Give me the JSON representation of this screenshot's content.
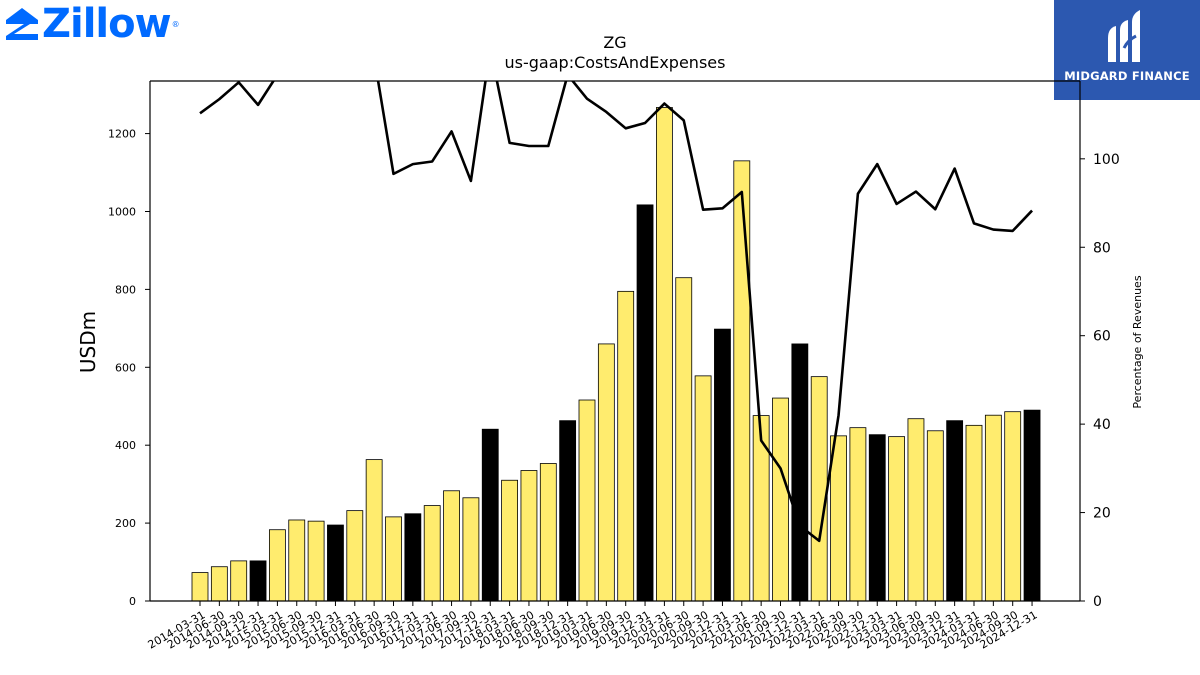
{
  "logos": {
    "left_wordmark": "Zillow",
    "left_reg_mark": "®",
    "right_brand": "MIDGARD FINANCE"
  },
  "colors": {
    "bar_fill": "#ffec6e",
    "bar_highlight": "#000000",
    "line": "#000000",
    "zillow_blue": "#006aff",
    "midgard_bg": "#2c58b0"
  },
  "chart_data": {
    "type": "bar",
    "title": "ZG",
    "subtitle": "us-gaap:CostsAndExpenses",
    "ylabel": "USDm",
    "y2label": "Percentage of Revenues",
    "ylim": [
      0,
      1335
    ],
    "y2lim": [
      0,
      117.6
    ],
    "yticks": [
      0,
      200,
      400,
      600,
      800,
      1000,
      1200
    ],
    "y2ticks": [
      0,
      20,
      40,
      60,
      80,
      100
    ],
    "categories": [
      "2014-03-31",
      "2014-06-30",
      "2014-09-30",
      "2014-12-31",
      "2015-03-31",
      "2015-06-30",
      "2015-09-30",
      "2015-12-31",
      "2016-03-31",
      "2016-06-30",
      "2016-09-30",
      "2016-12-31",
      "2017-03-31",
      "2017-06-30",
      "2017-09-30",
      "2017-12-31",
      "2018-03-31",
      "2018-06-30",
      "2018-09-30",
      "2018-12-31",
      "2019-03-31",
      "2019-06-30",
      "2019-09-30",
      "2019-12-31",
      "2020-03-31",
      "2020-06-30",
      "2020-09-30",
      "2020-12-31",
      "2021-03-31",
      "2021-06-30",
      "2021-09-30",
      "2021-12-31",
      "2022-03-31",
      "2022-06-30",
      "2022-09-30",
      "2022-12-31",
      "2023-03-31",
      "2023-06-30",
      "2023-09-30",
      "2023-12-31",
      "2024-03-31",
      "2024-06-30",
      "2024-09-30",
      "2024-12-31"
    ],
    "series": [
      {
        "type": "bar",
        "axis": "left",
        "values": [
          73,
          88,
          103,
          103,
          183,
          208,
          205,
          195,
          232,
          363,
          216,
          224,
          245,
          283,
          265,
          441,
          310,
          335,
          353,
          463,
          516,
          660,
          795,
          1017,
          1267,
          830,
          578,
          698,
          1130,
          476,
          521,
          660,
          576,
          424,
          445,
          427,
          422,
          468,
          437,
          463,
          451,
          477,
          486,
          490
        ],
        "highlighted": [
          false,
          false,
          false,
          true,
          false,
          false,
          false,
          true,
          false,
          false,
          false,
          true,
          false,
          false,
          false,
          true,
          false,
          false,
          false,
          true,
          false,
          false,
          false,
          true,
          false,
          false,
          false,
          true,
          false,
          false,
          false,
          true,
          false,
          false,
          false,
          true,
          false,
          false,
          false,
          true,
          false,
          false,
          false,
          true
        ]
      },
      {
        "type": "line",
        "axis": "right",
        "values": [
          110.3,
          113.5,
          117.3,
          112.2,
          119.0,
          120.0,
          118.1,
          118.0,
          122.0,
          123.0,
          96.6,
          98.8,
          99.4,
          106.2,
          95.0,
          125.0,
          103.6,
          102.9,
          102.9,
          119.0,
          113.6,
          110.6,
          106.9,
          108.1,
          112.5,
          108.7,
          88.5,
          88.8,
          92.5,
          36.3,
          30.0,
          17.0,
          13.6,
          42.0,
          92.1,
          98.8,
          89.8,
          92.6,
          88.6,
          97.8,
          85.4,
          84.0,
          83.7,
          88.3
        ]
      }
    ],
    "grid": false,
    "legend": "none"
  }
}
